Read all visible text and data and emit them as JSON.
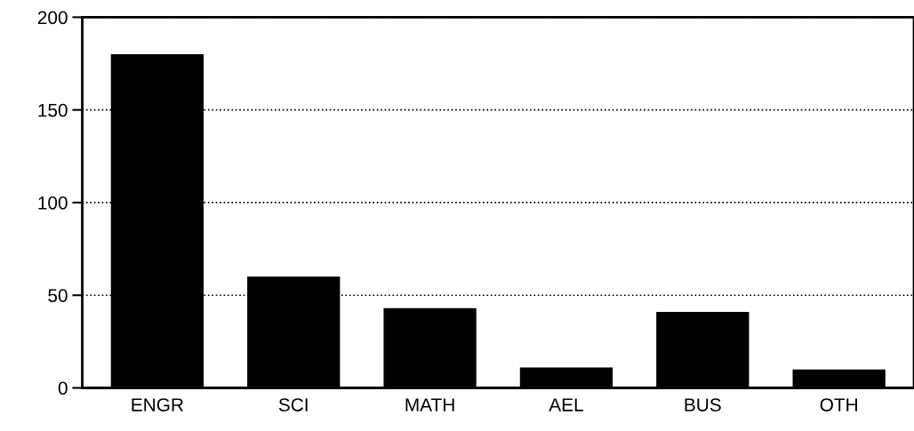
{
  "chart_data": {
    "type": "bar",
    "categories": [
      "ENGR",
      "SCI",
      "MATH",
      "AEL",
      "BUS",
      "OTH"
    ],
    "values": [
      180,
      60,
      43,
      11,
      41,
      10
    ],
    "color": "#000000",
    "ylim": [
      0,
      200
    ],
    "yticks": [
      0,
      50,
      100,
      150,
      200
    ],
    "grid": "y"
  }
}
